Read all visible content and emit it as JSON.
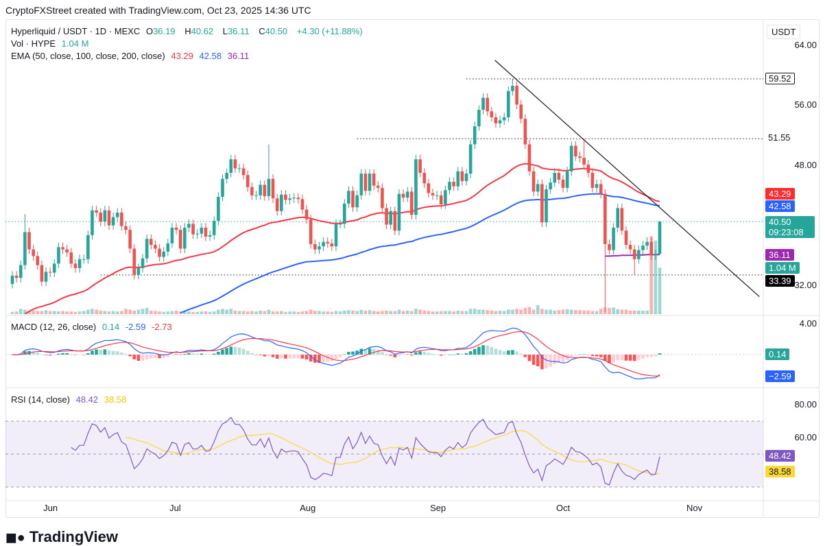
{
  "header": "CryptoFXStreet created with TradingView.com, Oct 23, 2025 14:36 UTC",
  "legend": {
    "symbol": "Hyperliquid / USDT · 1D · MEXC",
    "o_label": "O",
    "o": "36.19",
    "h_label": "H",
    "h": "40.62",
    "l_label": "L",
    "l": "36.11",
    "c_label": "C",
    "c": "40.50",
    "change": "+4.30 (+11.88%)",
    "vol_label": "Vol · HYPE",
    "vol": "1.04 M",
    "ema_label": "EMA (50, close, 100, close, 200, close)",
    "ema50": "43.29",
    "ema100": "42.58",
    "ema200": "36.11",
    "macd_label": "MACD (12, 26, close)",
    "macd_hist": "0.14",
    "macd": "-2.59",
    "macd_signal": "-2.73",
    "rsi_label": "RSI (14, close)",
    "rsi": "48.42",
    "rsi_ma": "38.58"
  },
  "currency": "USDT",
  "axis": {
    "price_ticks": [
      "64.00",
      "56.00",
      "48.00",
      "32.00"
    ],
    "macd_ticks": [
      "4.00"
    ],
    "rsi_ticks": [
      "80.00",
      "60.00"
    ],
    "months": [
      {
        "label": "Jun",
        "index": 9
      },
      {
        "label": "Jul",
        "index": 39
      },
      {
        "label": "Aug",
        "index": 70
      },
      {
        "label": "Sep",
        "index": 101
      },
      {
        "label": "Oct",
        "index": 131
      },
      {
        "label": "Nov",
        "index": 162
      }
    ]
  },
  "tags": {
    "ema50": "43.29",
    "ema100": "42.58",
    "price": "40.50",
    "countdown": "09:23:08",
    "ema200": "36.11",
    "volume": "1.04 M",
    "support": "33.39",
    "level1": "59.52",
    "level2": "51.55",
    "macd_hist": "0.14",
    "macd": "−2.59",
    "rsi": "48.42",
    "rsi_ma": "38.58"
  },
  "logo": "TradingView",
  "colors": {
    "up": "#26a69a",
    "down": "#ef5350",
    "ema50": "#f23645",
    "ema100": "#2962ff",
    "ema200": "#9c27b0",
    "rsi": "#7e57c2",
    "rsi_ma": "#f7c600"
  },
  "chart_data": {
    "type": "candlestick",
    "title": "Hyperliquid / USDT · 1D · MEXC",
    "first_open": 32.2,
    "closes": [
      33.3,
      33.0,
      34.7,
      39.1,
      36.8,
      35.9,
      34.7,
      32.5,
      33.8,
      33.7,
      34.9,
      37.1,
      36.8,
      36.4,
      34.9,
      34.3,
      35.5,
      35.5,
      38.7,
      42.0,
      41.7,
      40.5,
      42.0,
      40.0,
      41.1,
      41.7,
      39.9,
      39.4,
      36.9,
      33.4,
      34.3,
      35.6,
      38.2,
      37.4,
      36.9,
      35.8,
      36.5,
      37.6,
      39.7,
      39.4,
      36.9,
      39.7,
      40.2,
      38.8,
      38.9,
      39.7,
      38.5,
      38.7,
      40.6,
      43.8,
      46.2,
      47.0,
      48.8,
      47.6,
      47.6,
      46.7,
      45.1,
      44.0,
      44.0,
      45.4,
      43.9,
      46.2,
      43.6,
      41.9,
      44.1,
      43.4,
      43.6,
      43.7,
      43.5,
      42.1,
      40.8,
      37.5,
      36.8,
      37.2,
      37.8,
      37.6,
      37.2,
      40.2,
      40.2,
      42.9,
      44.6,
      42.4,
      44.0,
      46.9,
      44.6,
      46.9,
      45.3,
      45.0,
      42.3,
      40.1,
      41.9,
      39.3,
      44.2,
      43.7,
      44.5,
      41.4,
      48.8,
      47.0,
      45.6,
      44.3,
      44.0,
      44.0,
      42.8,
      44.7,
      45.8,
      45.2,
      47.2,
      45.9,
      46.9,
      50.8,
      53.2,
      55.4,
      57.0,
      55.2,
      54.4,
      53.6,
      54.0,
      54.4,
      57.9,
      58.6,
      56.1,
      54.2,
      50.8,
      47.2,
      44.5,
      45.5,
      40.4,
      44.8,
      45.7,
      47.0,
      46.1,
      45.0,
      47.2,
      50.6,
      49.2,
      49.0,
      48.1,
      47.0,
      45.0,
      45.5,
      44.2,
      37.5,
      36.7,
      39.7,
      42.3,
      39.3,
      37.4,
      36.8,
      35.5,
      36.7,
      37.3,
      37.8,
      36.0,
      36.19,
      40.5
    ],
    "default_wick": 0.6,
    "wick_overrides": [
      {
        "index": 3,
        "high": 41.5
      },
      {
        "index": 61,
        "high": 50.8
      },
      {
        "index": 119,
        "high": 59.52
      },
      {
        "index": 136,
        "high": 51.55
      },
      {
        "index": 141,
        "low": 28.5
      },
      {
        "index": 148,
        "low": 33.39
      },
      {
        "index": 154,
        "high": 40.62,
        "low": 36.11
      }
    ],
    "volumes_m": [
      0.05,
      0.06,
      0.12,
      0.1,
      0.08,
      0.08,
      0.07,
      0.07,
      0.09,
      0.07,
      0.07,
      0.06,
      0.07,
      0.06,
      0.06,
      0.05,
      0.06,
      0.07,
      0.1,
      0.12,
      0.1,
      0.08,
      0.07,
      0.06,
      0.07,
      0.06,
      0.07,
      0.12,
      0.1,
      0.08,
      0.1,
      0.12,
      0.14,
      0.08,
      0.07,
      0.06,
      0.05,
      0.06,
      0.07,
      0.08,
      0.06,
      0.07,
      0.06,
      0.05,
      0.05,
      0.06,
      0.06,
      0.05,
      0.06,
      0.1,
      0.12,
      0.1,
      0.12,
      0.08,
      0.07,
      0.07,
      0.06,
      0.07,
      0.06,
      0.08,
      0.07,
      0.1,
      0.06,
      0.06,
      0.07,
      0.05,
      0.06,
      0.06,
      0.05,
      0.06,
      0.07,
      0.1,
      0.08,
      0.07,
      0.06,
      0.06,
      0.05,
      0.07,
      0.06,
      0.08,
      0.09,
      0.08,
      0.07,
      0.1,
      0.08,
      0.09,
      0.07,
      0.06,
      0.07,
      0.08,
      0.07,
      0.07,
      0.1,
      0.07,
      0.08,
      0.07,
      0.12,
      0.1,
      0.08,
      0.07,
      0.06,
      0.06,
      0.07,
      0.07,
      0.07,
      0.06,
      0.08,
      0.07,
      0.07,
      0.12,
      0.12,
      0.1,
      0.1,
      0.09,
      0.08,
      0.07,
      0.08,
      0.07,
      0.1,
      0.1,
      0.12,
      0.1,
      0.14,
      0.16,
      0.1,
      0.2,
      0.12,
      0.1,
      0.1,
      0.08,
      0.09,
      0.1,
      0.11,
      0.1,
      0.09,
      0.09,
      0.08,
      0.08,
      0.07,
      0.07,
      0.12,
      0.15,
      0.14,
      0.15,
      0.11,
      0.1,
      0.1,
      0.08,
      0.08,
      0.08,
      0.08,
      0.08,
      1.75,
      1.65,
      1.04
    ],
    "ema50_seed": 27,
    "ema100_seed": 17,
    "ema200_tail": {
      "start_index": 141,
      "values": [
        35.9,
        35.9,
        35.95,
        35.95,
        36.0,
        36.0,
        36.0,
        36.05,
        36.05,
        36.05,
        36.1,
        36.1,
        36.1,
        36.11
      ]
    },
    "horizontal_levels": [
      {
        "price": 59.52,
        "from_index": 108
      },
      {
        "price": 51.55,
        "from_index": 82
      },
      {
        "price": 33.39,
        "from_index": 21
      }
    ],
    "trendline": {
      "from": {
        "index": 114.8,
        "price": 62.0
      },
      "to": {
        "index": 177.7,
        "price": 30.5
      }
    },
    "ylim_price": [
      31,
      65
    ],
    "macd": {
      "fast": 12,
      "slow": 26,
      "signal": 9
    },
    "rsi": {
      "period": 14,
      "ma": 14,
      "bands": [
        70,
        50,
        30
      ]
    }
  }
}
